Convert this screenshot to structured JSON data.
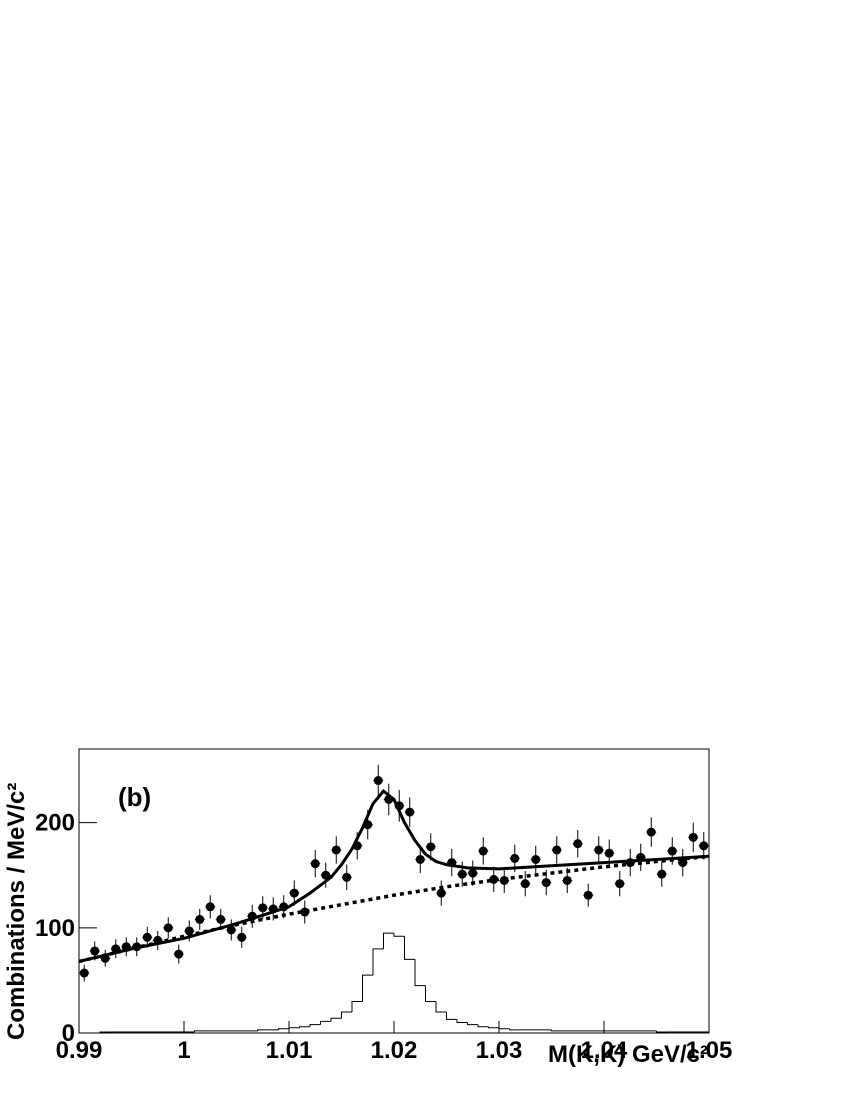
{
  "chart_data": {
    "type": "scatter",
    "annotation": "(b)",
    "ylabel": "Combinations / MeV/c²",
    "xlabel": "M(K,K)   GeV/c²",
    "color": "#000000",
    "xlim": [
      0.99,
      1.05
    ],
    "ylim": [
      0,
      270
    ],
    "xticks": [
      0.99,
      1,
      1.01,
      1.02,
      1.03,
      1.04,
      1.05
    ],
    "yticks": [
      0,
      100,
      200
    ],
    "points": {
      "x": [
        0.9905,
        0.9915,
        0.9925,
        0.9935,
        0.9945,
        0.9955,
        0.9965,
        0.9975,
        0.9985,
        0.9995,
        1.0005,
        1.0015,
        1.0025,
        1.0035,
        1.0045,
        1.0055,
        1.0065,
        1.0075,
        1.0085,
        1.0095,
        1.0105,
        1.0115,
        1.0125,
        1.0135,
        1.0145,
        1.0155,
        1.0165,
        1.0175,
        1.0185,
        1.0195,
        1.0205,
        1.0215,
        1.0225,
        1.0235,
        1.0245,
        1.0255,
        1.0265,
        1.0275,
        1.0285,
        1.0295,
        1.0305,
        1.0315,
        1.0325,
        1.0335,
        1.0345,
        1.0355,
        1.0365,
        1.0375,
        1.0385,
        1.0395,
        1.0405,
        1.0415,
        1.0425,
        1.0435,
        1.0445,
        1.0455,
        1.0465,
        1.0475,
        1.0485,
        1.0495
      ],
      "values": [
        57,
        78,
        71,
        80,
        82,
        82,
        91,
        88,
        100,
        75,
        97,
        108,
        120,
        108,
        98,
        91,
        111,
        119,
        118,
        120,
        133,
        115,
        161,
        150,
        174,
        148,
        178,
        198,
        240,
        222,
        216,
        210,
        165,
        177,
        133,
        162,
        151,
        152,
        173,
        146,
        145,
        166,
        142,
        165,
        143,
        174,
        145,
        180,
        131,
        174,
        171,
        142,
        162,
        167,
        191,
        151,
        173,
        162,
        186,
        178
      ],
      "errors": [
        8,
        9,
        8,
        9,
        9,
        9,
        10,
        9,
        10,
        9,
        10,
        10,
        11,
        10,
        10,
        10,
        11,
        11,
        11,
        11,
        12,
        11,
        13,
        12,
        13,
        12,
        13,
        14,
        15,
        15,
        15,
        14,
        13,
        13,
        12,
        13,
        12,
        12,
        13,
        12,
        12,
        13,
        12,
        13,
        12,
        13,
        12,
        13,
        11,
        13,
        13,
        12,
        13,
        13,
        14,
        12,
        13,
        13,
        14,
        13
      ]
    },
    "fit": {
      "x": [
        0.99,
        0.995,
        1.0,
        1.005,
        1.01,
        1.012,
        1.014,
        1.015,
        1.016,
        1.017,
        1.018,
        1.019,
        1.02,
        1.021,
        1.022,
        1.023,
        1.024,
        1.025,
        1.027,
        1.03,
        1.035,
        1.04,
        1.045,
        1.05
      ],
      "values": [
        68,
        80,
        90,
        104,
        120,
        133,
        148,
        160,
        175,
        195,
        218,
        230,
        222,
        200,
        183,
        170,
        163,
        160,
        157,
        156,
        159,
        162,
        165,
        168
      ]
    },
    "background": {
      "x": [
        0.99,
        0.995,
        1.0,
        1.005,
        1.01,
        1.015,
        1.02,
        1.025,
        1.03,
        1.035,
        1.04,
        1.045,
        1.05
      ],
      "values": [
        68,
        80,
        92,
        103,
        113,
        122,
        131,
        139,
        146,
        152,
        158,
        163,
        168
      ]
    },
    "histogram": {
      "bins": [
        0.99,
        0.991,
        0.992,
        0.993,
        0.994,
        0.995,
        0.996,
        0.997,
        0.998,
        0.999,
        1.0,
        1.001,
        1.002,
        1.003,
        1.004,
        1.005,
        1.006,
        1.007,
        1.008,
        1.009,
        1.01,
        1.011,
        1.012,
        1.013,
        1.014,
        1.015,
        1.016,
        1.017,
        1.018,
        1.019,
        1.02,
        1.021,
        1.022,
        1.023,
        1.024,
        1.025,
        1.026,
        1.027,
        1.028,
        1.029,
        1.03,
        1.031,
        1.032,
        1.033,
        1.034,
        1.035,
        1.036,
        1.037,
        1.038,
        1.039,
        1.04,
        1.041,
        1.042,
        1.043,
        1.044,
        1.045,
        1.046,
        1.047,
        1.048,
        1.049,
        1.05
      ],
      "counts": [
        0,
        0,
        1,
        1,
        1,
        1,
        1,
        1,
        1,
        1,
        1,
        2,
        2,
        2,
        2,
        2,
        2,
        3,
        3,
        4,
        5,
        6,
        8,
        11,
        14,
        20,
        30,
        55,
        80,
        95,
        92,
        70,
        45,
        30,
        20,
        13,
        10,
        8,
        6,
        5,
        4,
        3,
        3,
        3,
        3,
        2,
        2,
        2,
        2,
        2,
        2,
        2,
        2,
        2,
        2,
        1,
        1,
        1,
        1,
        1
      ]
    }
  }
}
